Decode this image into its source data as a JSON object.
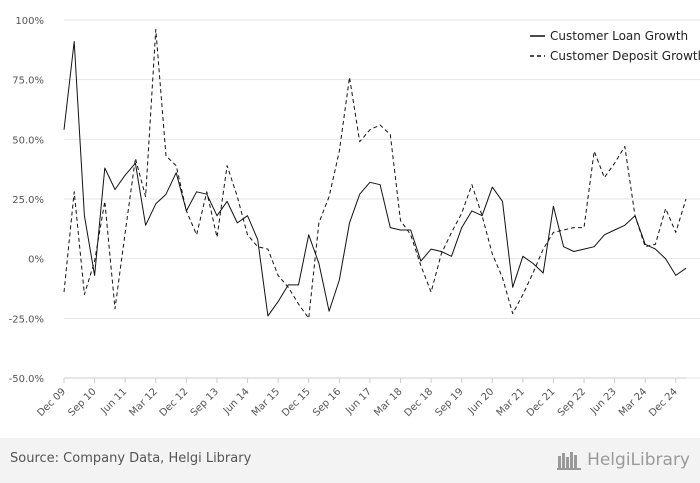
{
  "chart_data": {
    "type": "line",
    "x": [
      "Dec 09",
      "Mar 10",
      "Jun 10",
      "Sep 10",
      "Dec 10",
      "Mar 11",
      "Jun 11",
      "Sep 11",
      "Dec 11",
      "Mar 12",
      "Jun 12",
      "Sep 12",
      "Dec 12",
      "Mar 13",
      "Jun 13",
      "Sep 13",
      "Dec 13",
      "Mar 14",
      "Jun 14",
      "Sep 14",
      "Dec 14",
      "Mar 15",
      "Jun 15",
      "Sep 15",
      "Dec 15",
      "Mar 16",
      "Jun 16",
      "Sep 16",
      "Dec 16",
      "Mar 17",
      "Jun 17",
      "Sep 17",
      "Dec 17",
      "Mar 18",
      "Jun 18",
      "Sep 18",
      "Dec 18",
      "Mar 19",
      "Jun 19",
      "Sep 19",
      "Dec 19",
      "Mar 20",
      "Jun 20",
      "Sep 20",
      "Dec 20",
      "Mar 21",
      "Jun 21",
      "Sep 21",
      "Dec 21",
      "Mar 22",
      "Jun 22",
      "Sep 22",
      "Dec 22",
      "Mar 23",
      "Jun 23",
      "Sep 23",
      "Dec 23",
      "Mar 24",
      "Jun 24",
      "Sep 24",
      "Dec 24",
      "Mar 25"
    ],
    "tick_labels": [
      "Dec 09",
      "Sep 10",
      "Jun 11",
      "Mar 12",
      "Dec 12",
      "Sep 13",
      "Jun 14",
      "Mar 15",
      "Dec 15",
      "Sep 16",
      "Jun 17",
      "Mar 18",
      "Dec 18",
      "Sep 19",
      "Jun 20",
      "Mar 21",
      "Dec 21",
      "Sep 22",
      "Jun 23",
      "Mar 24",
      "Dec 24"
    ],
    "yticks": [
      "100%",
      "75.0%",
      "50.0%",
      "25.0%",
      "0%",
      "-25.0%",
      "-50.0%"
    ],
    "ylim": [
      -50,
      100
    ],
    "series": [
      {
        "name": "Customer Loan Growth",
        "style": "solid",
        "values": [
          54,
          91,
          18,
          -7,
          38,
          29,
          35,
          40,
          14,
          23,
          27,
          36,
          20,
          28,
          27,
          18,
          24,
          15,
          18,
          8,
          -24,
          -18,
          -11,
          -11,
          10,
          -2,
          -22,
          -9,
          15,
          27,
          32,
          31,
          13,
          12,
          12,
          -1,
          4,
          3,
          1,
          13,
          20,
          18,
          30,
          24,
          -12,
          1,
          -2,
          -6,
          22,
          5,
          3,
          4,
          5,
          10,
          12,
          14,
          18,
          6,
          4,
          0,
          -7,
          -4
        ]
      },
      {
        "name": "Customer Deposit Growth",
        "style": "dashed",
        "values": [
          -14,
          28,
          -15,
          -1,
          24,
          -21,
          11,
          42,
          26,
          96,
          43,
          39,
          20,
          10,
          28,
          9,
          39,
          26,
          10,
          5,
          4,
          -7,
          -12,
          -19,
          -25,
          15,
          26,
          45,
          76,
          49,
          54,
          56,
          52,
          16,
          10,
          -3,
          -14,
          2,
          11,
          19,
          31,
          18,
          2,
          -8,
          -23,
          -15,
          -6,
          4,
          11,
          12,
          13,
          13,
          45,
          34,
          40,
          47,
          18,
          5,
          6,
          21,
          11,
          25
        ]
      }
    ],
    "legend": "top-right",
    "grid": true
  },
  "footer": {
    "source": "Source: Company Data, Helgi Library",
    "brand_a": "Helgi",
    "brand_b": "Library"
  }
}
